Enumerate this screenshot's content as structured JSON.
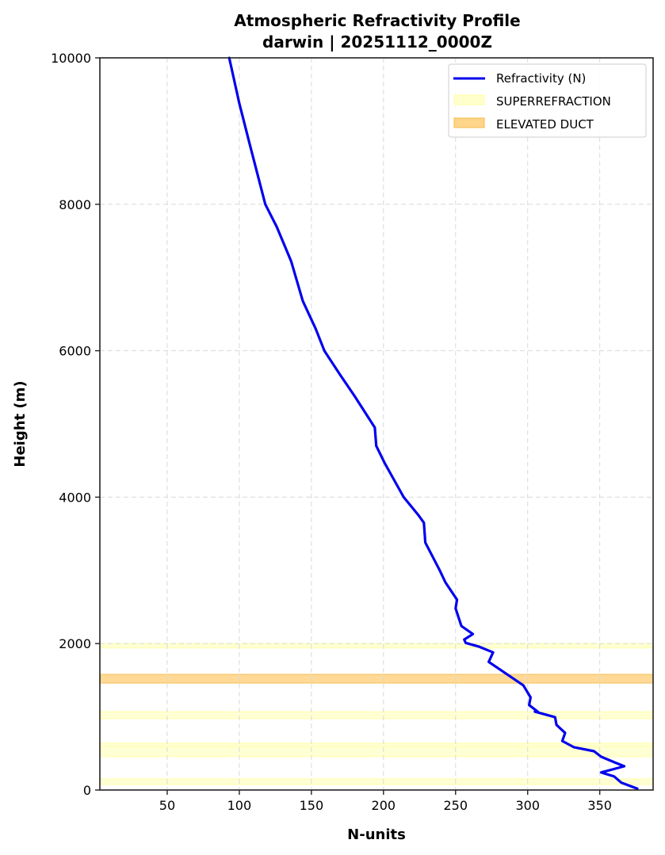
{
  "chart_data": {
    "type": "line",
    "title": "Atmospheric Refractivity Profile",
    "subtitle": "darwin | 20251112_0000Z",
    "xlabel": "N-units",
    "ylabel": "Height (m)",
    "xlim": [
      3.3,
      387
    ],
    "ylim": [
      0,
      10000
    ],
    "xticks": [
      50,
      100,
      150,
      200,
      250,
      300,
      350
    ],
    "yticks": [
      0,
      2000,
      4000,
      6000,
      8000,
      10000
    ],
    "grid": true,
    "legend_position": "upper right",
    "legend": [
      {
        "label": "Refractivity (N)",
        "type": "line",
        "color": "#0000ee"
      },
      {
        "label": "SUPERREFRACTION",
        "type": "band",
        "color": "#ffffcc"
      },
      {
        "label": "ELEVATED DUCT",
        "type": "band",
        "color": "#ffd58a"
      }
    ],
    "series": [
      {
        "name": "Refractivity (N)",
        "color": "#0000ee",
        "points": [
          [
            376,
            20
          ],
          [
            365,
            100
          ],
          [
            360,
            185
          ],
          [
            351,
            240
          ],
          [
            367,
            325
          ],
          [
            360,
            380
          ],
          [
            351,
            455
          ],
          [
            346,
            530
          ],
          [
            332,
            585
          ],
          [
            324,
            670
          ],
          [
            326,
            780
          ],
          [
            320,
            890
          ],
          [
            319,
            995
          ],
          [
            305,
            1070
          ],
          [
            307,
            1070
          ],
          [
            301,
            1160
          ],
          [
            302,
            1265
          ],
          [
            297,
            1430
          ],
          [
            285,
            1590
          ],
          [
            273,
            1750
          ],
          [
            276,
            1880
          ],
          [
            266,
            1960
          ],
          [
            257,
            2010
          ],
          [
            256,
            2055
          ],
          [
            262,
            2130
          ],
          [
            254,
            2240
          ],
          [
            250,
            2480
          ],
          [
            251,
            2600
          ],
          [
            243,
            2835
          ],
          [
            239,
            3000
          ],
          [
            229,
            3380
          ],
          [
            228,
            3650
          ],
          [
            224,
            3760
          ],
          [
            214,
            4000
          ],
          [
            201,
            4460
          ],
          [
            195,
            4700
          ],
          [
            194,
            4950
          ],
          [
            180,
            5380
          ],
          [
            170,
            5670
          ],
          [
            159,
            6000
          ],
          [
            153,
            6300
          ],
          [
            144,
            6680
          ],
          [
            136,
            7220
          ],
          [
            126,
            7690
          ],
          [
            118,
            8000
          ],
          [
            107,
            8840
          ],
          [
            100,
            9380
          ],
          [
            93,
            10000
          ]
        ]
      }
    ],
    "bands": [
      {
        "type": "SUPERREFRACTION",
        "bottom": 1940,
        "top": 2000
      },
      {
        "type": "ELEVATED DUCT",
        "bottom": 1460,
        "top": 1580
      },
      {
        "type": "SUPERREFRACTION",
        "bottom": 975,
        "top": 1070
      },
      {
        "type": "SUPERREFRACTION",
        "bottom": 595,
        "top": 640
      },
      {
        "type": "SUPERREFRACTION",
        "bottom": 455,
        "top": 595
      },
      {
        "type": "SUPERREFRACTION",
        "bottom": 76,
        "top": 152
      }
    ]
  }
}
